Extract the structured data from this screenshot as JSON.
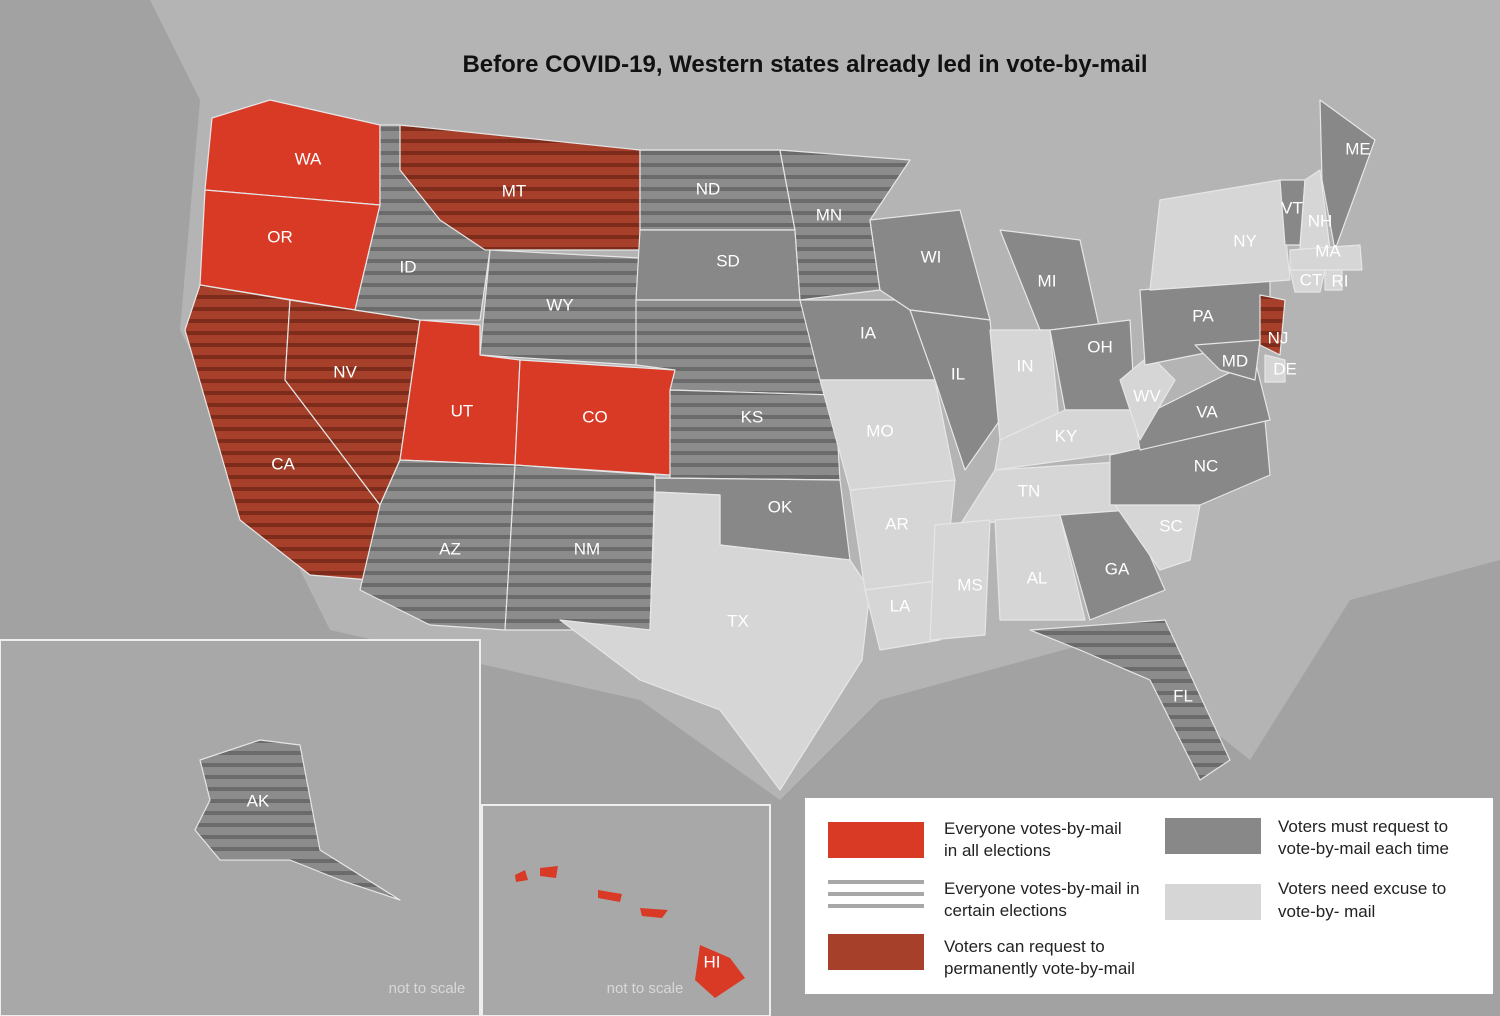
{
  "header": {
    "title": "Before COVID-19, Western states already led in vote-by-mail"
  },
  "states": [
    "WA",
    "OR",
    "CA",
    "NV",
    "ID",
    "MT",
    "WY",
    "UT",
    "CO",
    "AZ",
    "NM",
    "ND",
    "SD",
    "KS",
    "OK",
    "TX",
    "MN",
    "IA",
    "MO",
    "AR",
    "LA",
    "WI",
    "IL",
    "MI",
    "IN",
    "OH",
    "KY",
    "TN",
    "MS",
    "AL",
    "GA",
    "FL",
    "SC",
    "NC",
    "VA",
    "WV",
    "PA",
    "NY",
    "VT",
    "NH",
    "ME",
    "MA",
    "CT",
    "RI",
    "NJ",
    "DE",
    "MD",
    "AK",
    "HI"
  ],
  "legend": [
    [
      "Everyone votes-by-mail",
      "in all elections"
    ],
    [
      "Everyone votes-by-mail in",
      "certain elections"
    ],
    [
      "Voters can request to",
      "permanently vote-by-mail"
    ],
    [
      "Voters must request to",
      "vote-by-mail each time"
    ],
    [
      "Voters need excuse to",
      "vote-by- mail"
    ]
  ],
  "insets": [
    "not to scale",
    "not to scale"
  ]
}
